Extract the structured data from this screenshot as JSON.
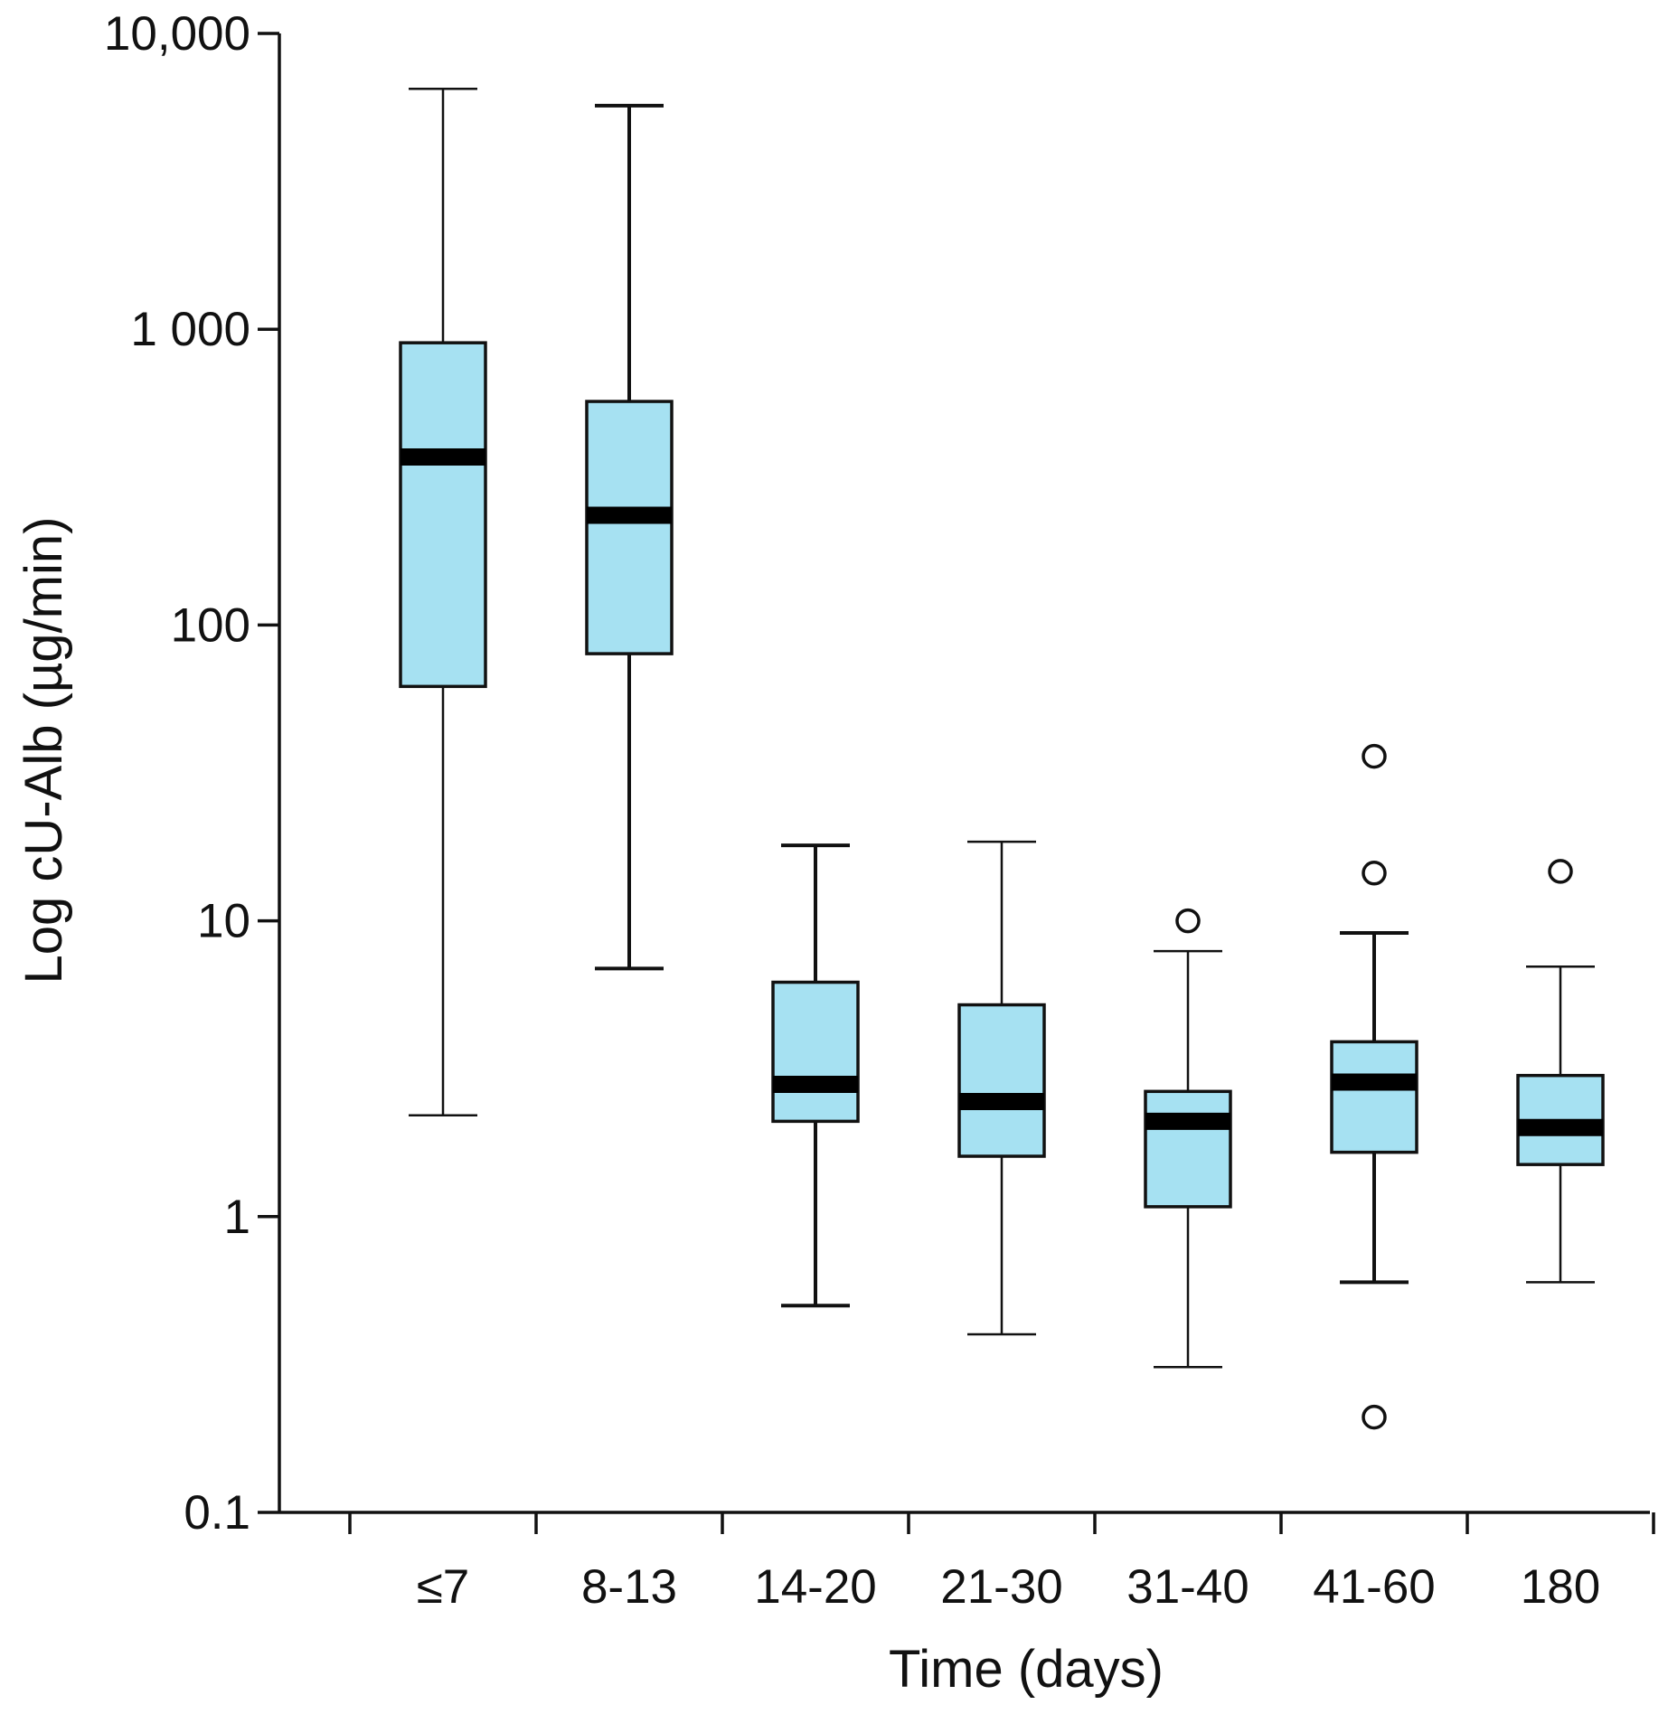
{
  "chart_data": {
    "type": "boxplot",
    "title": "",
    "xlabel": "Time (days)",
    "ylabel": "Log cU-Alb (µg/min)",
    "yscale": "log",
    "ylim": [
      0.1,
      10000
    ],
    "y_ticks": [
      {
        "value": 0.1,
        "label": "0.1"
      },
      {
        "value": 1,
        "label": "1"
      },
      {
        "value": 10,
        "label": "10"
      },
      {
        "value": 100,
        "label": "100"
      },
      {
        "value": 1000,
        "label": "1 000"
      },
      {
        "value": 10000,
        "label": "10,000"
      }
    ],
    "categories": [
      "≤7",
      "8-13",
      "14-20",
      "21-30",
      "31-40",
      "41-60",
      "180"
    ],
    "box_color": "#a6e1f2",
    "boxes": [
      {
        "category": "≤7",
        "whisker_low": 2.2,
        "q1": 62,
        "median": 370,
        "q3": 900,
        "whisker_high": 6500,
        "outliers": []
      },
      {
        "category": "8-13",
        "whisker_low": 6.9,
        "q1": 80,
        "median": 235,
        "q3": 570,
        "whisker_high": 5700,
        "outliers": []
      },
      {
        "category": "14-20",
        "whisker_low": 0.5,
        "q1": 2.1,
        "median": 2.8,
        "q3": 6.2,
        "whisker_high": 18,
        "outliers": []
      },
      {
        "category": "21-30",
        "whisker_low": 0.4,
        "q1": 1.6,
        "median": 2.45,
        "q3": 5.2,
        "whisker_high": 18.5,
        "outliers": []
      },
      {
        "category": "31-40",
        "whisker_low": 0.31,
        "q1": 1.08,
        "median": 2.1,
        "q3": 2.65,
        "whisker_high": 7.9,
        "outliers": [
          10
        ]
      },
      {
        "category": "41-60",
        "whisker_low": 0.6,
        "q1": 1.65,
        "median": 2.85,
        "q3": 3.9,
        "whisker_high": 9.1,
        "outliers": [
          0.21,
          14.5,
          36
        ]
      },
      {
        "category": "180",
        "whisker_low": 0.6,
        "q1": 1.5,
        "median": 2.0,
        "q3": 3.0,
        "whisker_high": 7.0,
        "outliers": [
          14.7
        ]
      }
    ]
  }
}
